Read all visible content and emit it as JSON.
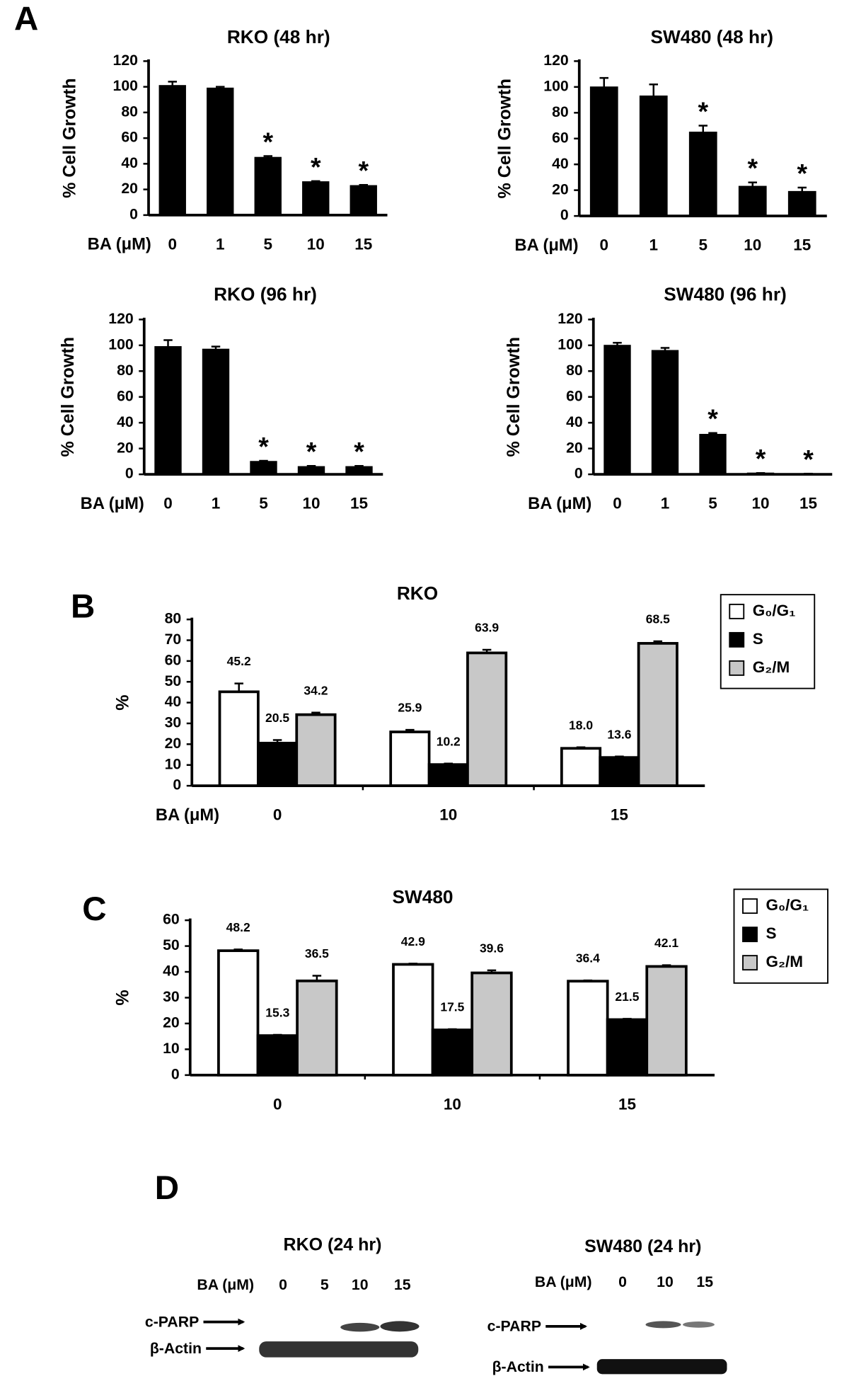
{
  "panel_labels": [
    "A",
    "B",
    "C",
    "D"
  ],
  "chart_data": [
    {
      "type": "bar",
      "title": "RKO (48 hr)",
      "ylabel": "% Cell Growth",
      "xlabel": "BA (μM)",
      "categories": [
        "0",
        "1",
        "5",
        "10",
        "15"
      ],
      "values": [
        101,
        99,
        45,
        26,
        23
      ],
      "errors": [
        3,
        1,
        1,
        0.5,
        0.5
      ],
      "markers": [
        null,
        null,
        "*",
        "*",
        "*"
      ],
      "color": "#000000",
      "ylim": [
        0,
        120
      ],
      "yticks": [
        0,
        20,
        40,
        60,
        80,
        100,
        120
      ]
    },
    {
      "type": "bar",
      "title": "SW480 (48 hr)",
      "ylabel": "% Cell Growth",
      "xlabel": "BA (μM)",
      "categories": [
        "0",
        "1",
        "5",
        "10",
        "15"
      ],
      "values": [
        100,
        93,
        65,
        23,
        19
      ],
      "errors": [
        7,
        9,
        5,
        3,
        3
      ],
      "markers": [
        null,
        null,
        "*",
        "*",
        "*"
      ],
      "color": "#000000",
      "ylim": [
        0,
        120
      ],
      "yticks": [
        0,
        20,
        40,
        60,
        80,
        100,
        120
      ]
    },
    {
      "type": "bar",
      "title": "RKO (96 hr)",
      "ylabel": "% Cell Growth",
      "xlabel": "BA (μM)",
      "categories": [
        "0",
        "1",
        "5",
        "10",
        "15"
      ],
      "values": [
        99,
        97,
        10,
        6,
        6
      ],
      "errors": [
        5,
        2,
        0.5,
        0.5,
        0.5
      ],
      "markers": [
        null,
        null,
        "*",
        "*",
        "*"
      ],
      "color": "#000000",
      "ylim": [
        0,
        120
      ],
      "yticks": [
        0,
        20,
        40,
        60,
        80,
        100,
        120
      ]
    },
    {
      "type": "bar",
      "title": "SW480 (96 hr)",
      "ylabel": "% Cell Growth",
      "xlabel": "BA (μM)",
      "categories": [
        "0",
        "1",
        "5",
        "10",
        "15"
      ],
      "values": [
        100,
        96,
        31,
        1,
        0.5
      ],
      "errors": [
        2,
        2,
        1,
        0,
        0
      ],
      "markers": [
        null,
        null,
        "*",
        "*",
        "*"
      ],
      "color": "#000000",
      "ylim": [
        0,
        120
      ],
      "yticks": [
        0,
        20,
        40,
        60,
        80,
        100,
        120
      ]
    },
    {
      "type": "bar",
      "title": "RKO",
      "ylabel": "%",
      "xlabel": "BA (μM)",
      "categories": [
        "0",
        "10",
        "15"
      ],
      "series": [
        {
          "name": "G₀/G₁",
          "color": "#ffffff",
          "values": [
            45.2,
            25.9,
            18.0
          ],
          "value_labels": [
            "45.2",
            "25.9",
            "18.0"
          ],
          "errors": [
            4,
            1,
            0.5
          ]
        },
        {
          "name": "S",
          "color": "#000000",
          "values": [
            20.5,
            10.2,
            13.6
          ],
          "errors": [
            1.5,
            0.5,
            0.5
          ]
        },
        {
          "name": "G₂/M",
          "color": "#c8c8c8",
          "values": [
            34.2,
            63.9,
            68.5
          ],
          "errors": [
            1,
            1.5,
            1
          ]
        }
      ],
      "ylim": [
        0,
        80
      ],
      "yticks": [
        0,
        10,
        20,
        30,
        40,
        50,
        60,
        70,
        80
      ],
      "legend": "upper right"
    },
    {
      "type": "bar",
      "title": "SW480",
      "ylabel": "%",
      "categories": [
        "0",
        "10",
        "15"
      ],
      "series": [
        {
          "name": "G₀/G₁",
          "color": "#ffffff",
          "values": [
            48.2,
            42.9,
            36.4
          ],
          "errors": [
            0.5,
            0.3,
            0.3
          ]
        },
        {
          "name": "S",
          "color": "#000000",
          "values": [
            15.3,
            17.5,
            21.5
          ],
          "errors": [
            0.3,
            0.3,
            0.3
          ]
        },
        {
          "name": "G₂/M",
          "color": "#c8c8c8",
          "values": [
            36.5,
            39.6,
            42.1
          ],
          "errors": [
            2,
            1,
            0.5
          ]
        }
      ],
      "ylim": [
        0,
        60
      ],
      "yticks": [
        0,
        10,
        20,
        30,
        40,
        50,
        60
      ],
      "legend": "upper right"
    }
  ],
  "blots": [
    {
      "title": "RKO (24 hr)",
      "treatment_label": "BA (μM)",
      "lanes": [
        "0",
        "5",
        "10",
        "15"
      ],
      "bands": [
        "c-PARP",
        "β-Actin"
      ]
    },
    {
      "title": "SW480 (24 hr)",
      "treatment_label": "BA (μM)",
      "lanes": [
        "0",
        "10",
        "15"
      ],
      "bands": [
        "c-PARP",
        "β-Actin"
      ]
    }
  ]
}
